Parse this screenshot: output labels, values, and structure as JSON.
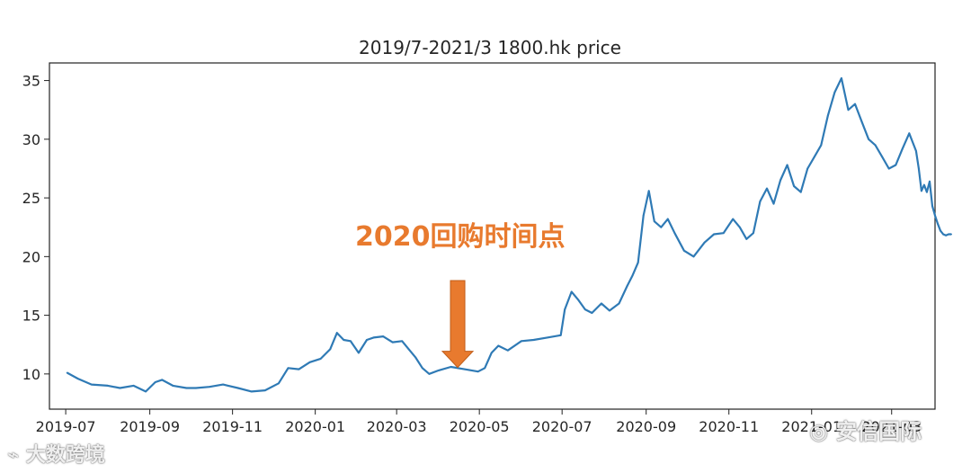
{
  "chart_data": {
    "type": "line",
    "title": "2019/7-2021/3 1800.hk price",
    "xlabel": "",
    "ylabel": "",
    "ylim": [
      7.0,
      36.5
    ],
    "xlim": [
      "2019-06-19",
      "2021-04-02"
    ],
    "yticks": [
      10,
      15,
      20,
      25,
      30,
      35
    ],
    "xticks": [
      "2019-07",
      "2019-09",
      "2019-11",
      "2020-01",
      "2020-03",
      "2020-05",
      "2020-07",
      "2020-09",
      "2020-11",
      "2021-01",
      "2021-03"
    ],
    "grid": false,
    "line_color": "#2f7ab5",
    "series": [
      {
        "name": "",
        "x": [
          "2019-07-02",
          "2019-07-10",
          "2019-07-20",
          "2019-08-01",
          "2019-08-10",
          "2019-08-20",
          "2019-08-29",
          "2019-09-05",
          "2019-09-10",
          "2019-09-18",
          "2019-09-28",
          "2019-10-05",
          "2019-10-15",
          "2019-10-25",
          "2019-11-05",
          "2019-11-15",
          "2019-11-25",
          "2019-12-05",
          "2019-12-12",
          "2019-12-20",
          "2019-12-28",
          "2020-01-05",
          "2020-01-12",
          "2020-01-17",
          "2020-01-22",
          "2020-01-27",
          "2020-02-02",
          "2020-02-08",
          "2020-02-13",
          "2020-02-20",
          "2020-02-27",
          "2020-03-05",
          "2020-03-10",
          "2020-03-15",
          "2020-03-20",
          "2020-03-25",
          "2020-04-01",
          "2020-04-10",
          "2020-04-20",
          "2020-04-30",
          "2020-05-05",
          "2020-05-10",
          "2020-05-15",
          "2020-05-22",
          "2020-06-01",
          "2020-06-10",
          "2020-06-20",
          "2020-06-30",
          "2020-07-03",
          "2020-07-08",
          "2020-07-13",
          "2020-07-18",
          "2020-07-23",
          "2020-07-30",
          "2020-08-05",
          "2020-08-12",
          "2020-08-18",
          "2020-08-22",
          "2020-08-26",
          "2020-08-30",
          "2020-09-03",
          "2020-09-07",
          "2020-09-12",
          "2020-09-17",
          "2020-09-22",
          "2020-09-29",
          "2020-10-06",
          "2020-10-14",
          "2020-10-21",
          "2020-10-28",
          "2020-11-04",
          "2020-11-09",
          "2020-11-14",
          "2020-11-19",
          "2020-11-24",
          "2020-11-29",
          "2020-12-04",
          "2020-12-09",
          "2020-12-14",
          "2020-12-19",
          "2020-12-24",
          "2020-12-29",
          "2021-01-03",
          "2021-01-08",
          "2021-01-13",
          "2021-01-18",
          "2021-01-23",
          "2021-01-28",
          "2021-02-02",
          "2021-02-07",
          "2021-02-12",
          "2021-02-17",
          "2021-02-22",
          "2021-02-27",
          "2021-03-04",
          "2021-03-09",
          "2021-03-14",
          "2021-03-19"
        ],
        "y": [
          10.1,
          9.6,
          9.1,
          9.0,
          8.8,
          9.0,
          8.5,
          9.3,
          9.5,
          9.0,
          8.8,
          8.8,
          8.9,
          9.1,
          8.8,
          8.5,
          8.6,
          9.2,
          10.5,
          10.4,
          11.0,
          11.3,
          12.1,
          13.5,
          12.9,
          12.8,
          11.8,
          12.9,
          13.1,
          13.2,
          12.7,
          12.8,
          12.1,
          11.4,
          10.5,
          10.0,
          10.3,
          10.6,
          10.4,
          10.2,
          10.5,
          11.8,
          12.4,
          12.0,
          12.8,
          12.9,
          13.1,
          13.3,
          15.5,
          17.0,
          16.3,
          15.5,
          15.2,
          16.0,
          15.4,
          16.0,
          17.5,
          18.4,
          19.5,
          23.5,
          25.6,
          23.0,
          22.5,
          23.2,
          22.0,
          20.5,
          20.0,
          21.2,
          21.9,
          22.0,
          23.2,
          22.5,
          21.5,
          22.0,
          24.7,
          25.8,
          24.5,
          26.5,
          27.8,
          26.0,
          25.5,
          27.5,
          28.5,
          29.5,
          32.0,
          34.0,
          35.2,
          32.5,
          33.0,
          31.5,
          30.0,
          29.5,
          28.5,
          27.5,
          27.8,
          29.2,
          30.5,
          29.0
        ]
      },
      {
        "name": "",
        "x": [
          "2021-03-19",
          "2021-03-21",
          "2021-03-23",
          "2021-03-25",
          "2021-03-27",
          "2021-03-29",
          "2021-03-31",
          "2021-04-02",
          "2021-04-04",
          "2021-04-06",
          "2021-04-08",
          "2021-04-10",
          "2021-04-12",
          "2021-04-14"
        ],
        "y": [
          29.0,
          27.5,
          25.6,
          26.1,
          25.5,
          26.4,
          24.3,
          23.5,
          22.8,
          22.2,
          21.9,
          21.8,
          21.9,
          21.9
        ]
      }
    ],
    "annotation": {
      "text": "2020回购时间点",
      "target_x": "2020-04-15",
      "target_y": 10.4,
      "color": "#e87a2e"
    }
  },
  "watermarks": {
    "bottom_left": "大数跨境",
    "bottom_right": "安信国际"
  }
}
